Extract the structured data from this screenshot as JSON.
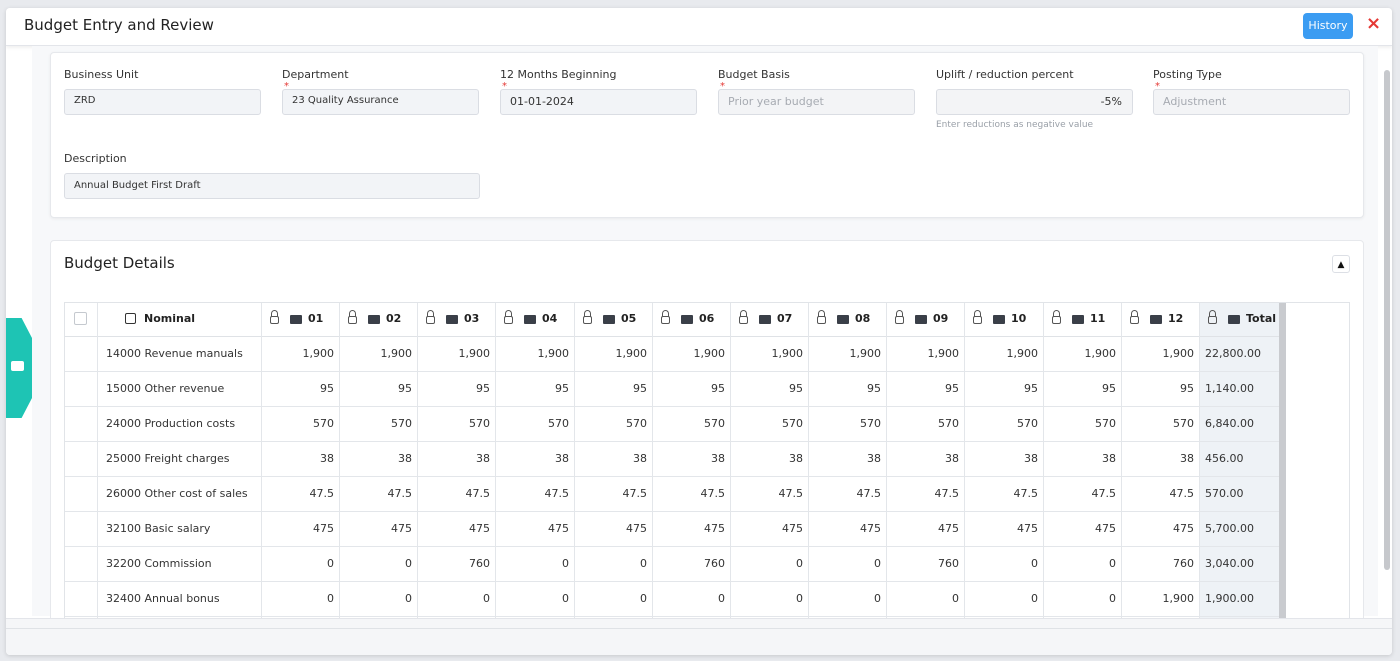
{
  "header": {
    "title": "Budget Entry and Review",
    "history_button": "History",
    "close": "×"
  },
  "form": {
    "fields": [
      {
        "label": "Business Unit",
        "value": "ZRD"
      },
      {
        "label": "Department",
        "required": "*",
        "value": "23 Quality Assurance"
      },
      {
        "label": "12 Months Beginning",
        "required": "*",
        "value": "01-01-2024"
      },
      {
        "label": "Budget Basis",
        "required": "*",
        "value": "Prior year budget"
      },
      {
        "label": "Uplift / reduction percent",
        "value": "-5%",
        "hint": "Enter reductions as negative value"
      },
      {
        "label": "Posting Type",
        "required": "*",
        "value": "Adjustment"
      }
    ],
    "description": {
      "label": "Description",
      "value": "Annual Budget First Draft"
    }
  },
  "details": {
    "title": "Budget Details",
    "columns": [
      "Nominal",
      "01",
      "02",
      "03",
      "04",
      "05",
      "06",
      "07",
      "08",
      "09",
      "10",
      "11",
      "12",
      "Total"
    ],
    "rows": [
      [
        "14000 Revenue manuals",
        "1,900",
        "1,900",
        "1,900",
        "1,900",
        "1,900",
        "1,900",
        "1,900",
        "1,900",
        "1,900",
        "1,900",
        "1,900",
        "1,900",
        "22,800.00"
      ],
      [
        "15000 Other revenue",
        "95",
        "95",
        "95",
        "95",
        "95",
        "95",
        "95",
        "95",
        "95",
        "95",
        "95",
        "95",
        "1,140.00"
      ],
      [
        "24000 Production costs",
        "570",
        "570",
        "570",
        "570",
        "570",
        "570",
        "570",
        "570",
        "570",
        "570",
        "570",
        "570",
        "6,840.00"
      ],
      [
        "25000 Freight charges",
        "38",
        "38",
        "38",
        "38",
        "38",
        "38",
        "38",
        "38",
        "38",
        "38",
        "38",
        "38",
        "456.00"
      ],
      [
        "26000 Other cost of sales",
        "47.5",
        "47.5",
        "47.5",
        "47.5",
        "47.5",
        "47.5",
        "47.5",
        "47.5",
        "47.5",
        "47.5",
        "47.5",
        "47.5",
        "570.00"
      ],
      [
        "32100 Basic salary",
        "475",
        "475",
        "475",
        "475",
        "475",
        "475",
        "475",
        "475",
        "475",
        "475",
        "475",
        "475",
        "5,700.00"
      ],
      [
        "32200 Commission",
        "0",
        "0",
        "760",
        "0",
        "0",
        "760",
        "0",
        "0",
        "760",
        "0",
        "0",
        "760",
        "3,040.00"
      ],
      [
        "32400 Annual bonus",
        "0",
        "0",
        "0",
        "0",
        "0",
        "0",
        "0",
        "0",
        "0",
        "0",
        "0",
        "1,900",
        "1,900.00"
      ]
    ]
  }
}
